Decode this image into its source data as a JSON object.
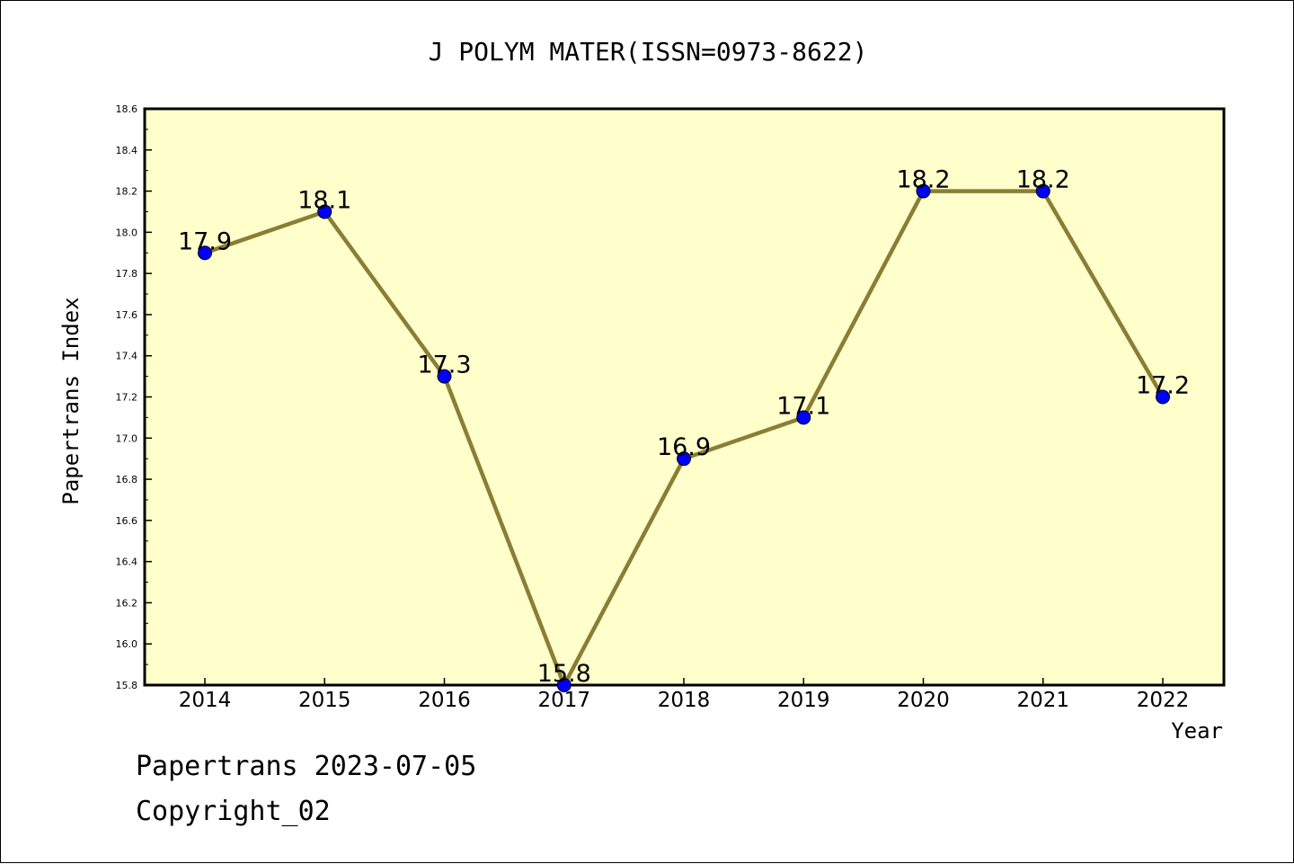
{
  "chart_data": {
    "type": "line",
    "title": "J POLYM MATER(ISSN=0973-8622)",
    "xlabel": "Year",
    "ylabel": "Papertrans Index",
    "categories": [
      "2014",
      "2015",
      "2016",
      "2017",
      "2018",
      "2019",
      "2020",
      "2021",
      "2022"
    ],
    "series": [
      {
        "values": [
          17.9,
          18.1,
          17.3,
          15.8,
          16.9,
          17.1,
          18.2,
          18.2,
          17.2
        ]
      }
    ],
    "data_labels": [
      "17.9",
      "18.1",
      "17.3",
      "15.8",
      "16.9",
      "17.1",
      "18.2",
      "18.2",
      "17.2"
    ],
    "ylim": [
      15.8,
      18.6
    ],
    "yticks": [
      "15.8",
      "16.0",
      "16.2",
      "16.4",
      "16.6",
      "16.8",
      "17.0",
      "17.2",
      "17.4",
      "17.6",
      "17.8",
      "18.0",
      "18.2",
      "18.4",
      "18.6"
    ],
    "grid": false,
    "colors": {
      "plot_background": "#ffffcc",
      "line": "#8b7d35",
      "marker": "#0000ff"
    }
  },
  "footer": {
    "line1": "Papertrans 2023-07-05",
    "line2": "Copyright_02"
  }
}
